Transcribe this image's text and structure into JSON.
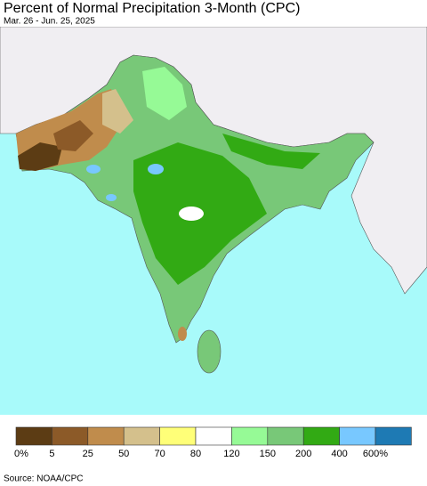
{
  "title": "Percent of Normal Precipitation 3-Month (CPC)",
  "subtitle": "Mar. 26 - Jun. 25, 2025",
  "legend": {
    "colors": [
      "#5c3c14",
      "#8c5a28",
      "#c08c4c",
      "#d4c08c",
      "#ffff78",
      "#ffffff",
      "#96fa96",
      "#78c878",
      "#32aa14",
      "#78c8ff",
      "#1e7ab4"
    ],
    "labels": [
      "0%",
      "5",
      "25",
      "50",
      "70",
      "80",
      "120",
      "150",
      "200",
      "400",
      "600%"
    ]
  },
  "source": "Source: NOAA/CPC"
}
